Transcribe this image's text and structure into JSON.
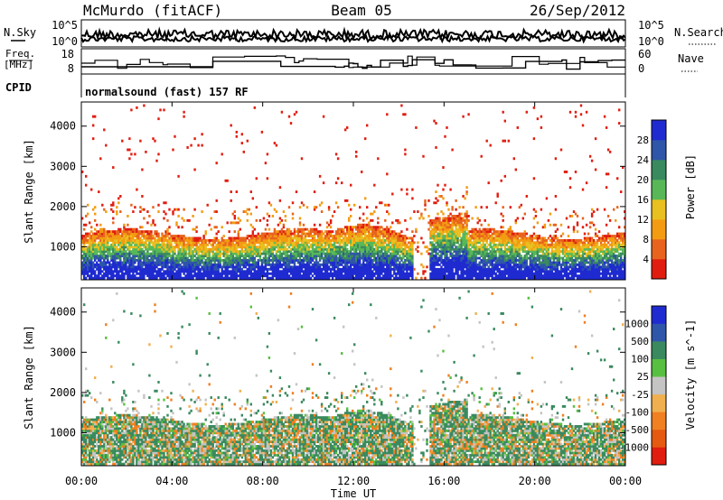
{
  "header": {
    "station": "McMurdo (fitACF)",
    "beam": "Beam 05",
    "date": "26/Sep/2012"
  },
  "top_panels": {
    "nsky_label": "N.Sky",
    "nsearch_label": "N.Search",
    "nsky_ticks": [
      "10^5",
      "10^0"
    ],
    "nsearch_ticks": [
      "10^5",
      "10^0"
    ],
    "freq_label_1": "Freq.",
    "freq_label_2": "[MHz]",
    "freq_ticks": [
      "18",
      "8"
    ],
    "nave_label": "Nave",
    "nave_ticks": [
      "60",
      "0"
    ],
    "cpid_label": "CPID",
    "cpid_value": "normalsound (fast) 157 RF"
  },
  "x_axis": {
    "label": "Time UT",
    "ticks": [
      "00:00",
      "04:00",
      "08:00",
      "12:00",
      "16:00",
      "20:00",
      "00:00"
    ],
    "hours": [
      0,
      4,
      8,
      12,
      16,
      20,
      24
    ]
  },
  "colors": {
    "power": [
      "#1f2bd0",
      "#2f56a8",
      "#3a8a5f",
      "#58b858",
      "#e8c020",
      "#f39c12",
      "#e8641e",
      "#e11d10"
    ],
    "velocity": [
      "#1f2bd0",
      "#2f56a8",
      "#3a8a5f",
      "#58c040",
      "#c4c4c4",
      "#f0b050",
      "#f08020",
      "#e55a10",
      "#e11d10"
    ]
  },
  "chart_data": [
    {
      "type": "heatmap",
      "name": "power",
      "ylabel": "Slant Range [km]",
      "yticks": [
        1000,
        2000,
        3000,
        4000
      ],
      "ylim": [
        180,
        4600
      ],
      "xlim": [
        0,
        24
      ],
      "colorbar_label": "Power [dB]",
      "colorbar_ticks": [
        4,
        8,
        12,
        16,
        20,
        24,
        28
      ],
      "colorbar_range": [
        0,
        32
      ]
    },
    {
      "type": "heatmap",
      "name": "velocity",
      "ylabel": "Slant Range [km]",
      "yticks": [
        1000,
        2000,
        3000,
        4000
      ],
      "ylim": [
        180,
        4600
      ],
      "xlim": [
        0,
        24
      ],
      "colorbar_label": "Velocity [m s^-1]",
      "colorbar_ticks": [
        "1000",
        "500",
        "100",
        "25",
        "-25",
        "-100",
        "-500",
        "-1000"
      ]
    }
  ]
}
